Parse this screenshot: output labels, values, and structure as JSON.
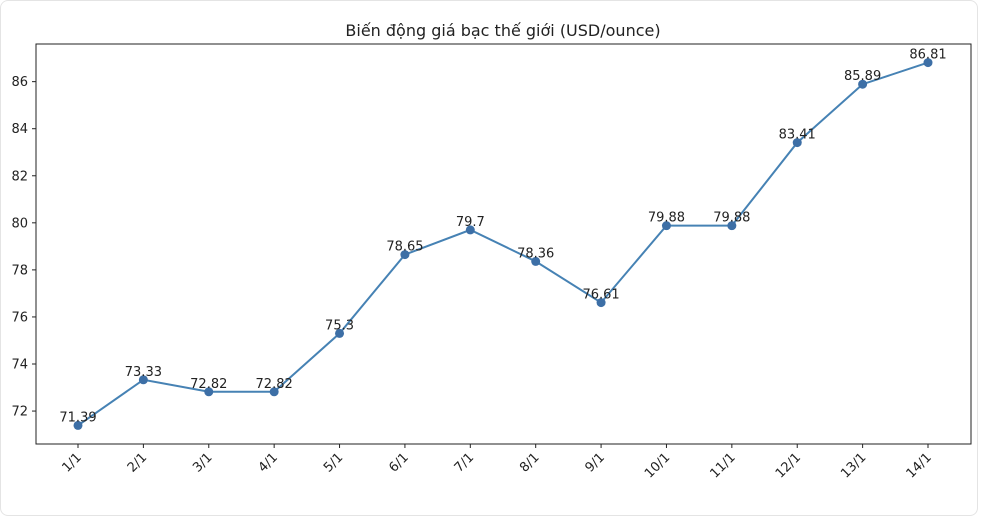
{
  "chart_data": {
    "type": "line",
    "title": "Biến động giá bạc thế giới (USD/ounce)",
    "xlabel": "",
    "ylabel": "",
    "categories": [
      "1/1",
      "2/1",
      "3/1",
      "4/1",
      "5/1",
      "6/1",
      "7/1",
      "8/1",
      "9/1",
      "10/1",
      "11/1",
      "12/1",
      "13/1",
      "14/1"
    ],
    "series": [
      {
        "values": [
          71.39,
          73.33,
          72.82,
          72.82,
          75.3,
          78.65,
          79.7,
          78.36,
          76.61,
          79.88,
          79.88,
          83.41,
          85.89,
          86.81
        ],
        "labels": [
          "71.39",
          "73.33",
          "72.82",
          "72.82",
          "75.3",
          "78.65",
          "79.7",
          "78.36",
          "76.61",
          "79.88",
          "79.88",
          "83.41",
          "85.89",
          "86.81"
        ]
      }
    ],
    "yticks": [
      72,
      74,
      76,
      78,
      80,
      82,
      84,
      86
    ],
    "ylim": [
      70.6,
      87.6
    ],
    "grid": false,
    "legend": "none",
    "line_color": "#4682b4",
    "marker_color": "#3d6fa6"
  }
}
